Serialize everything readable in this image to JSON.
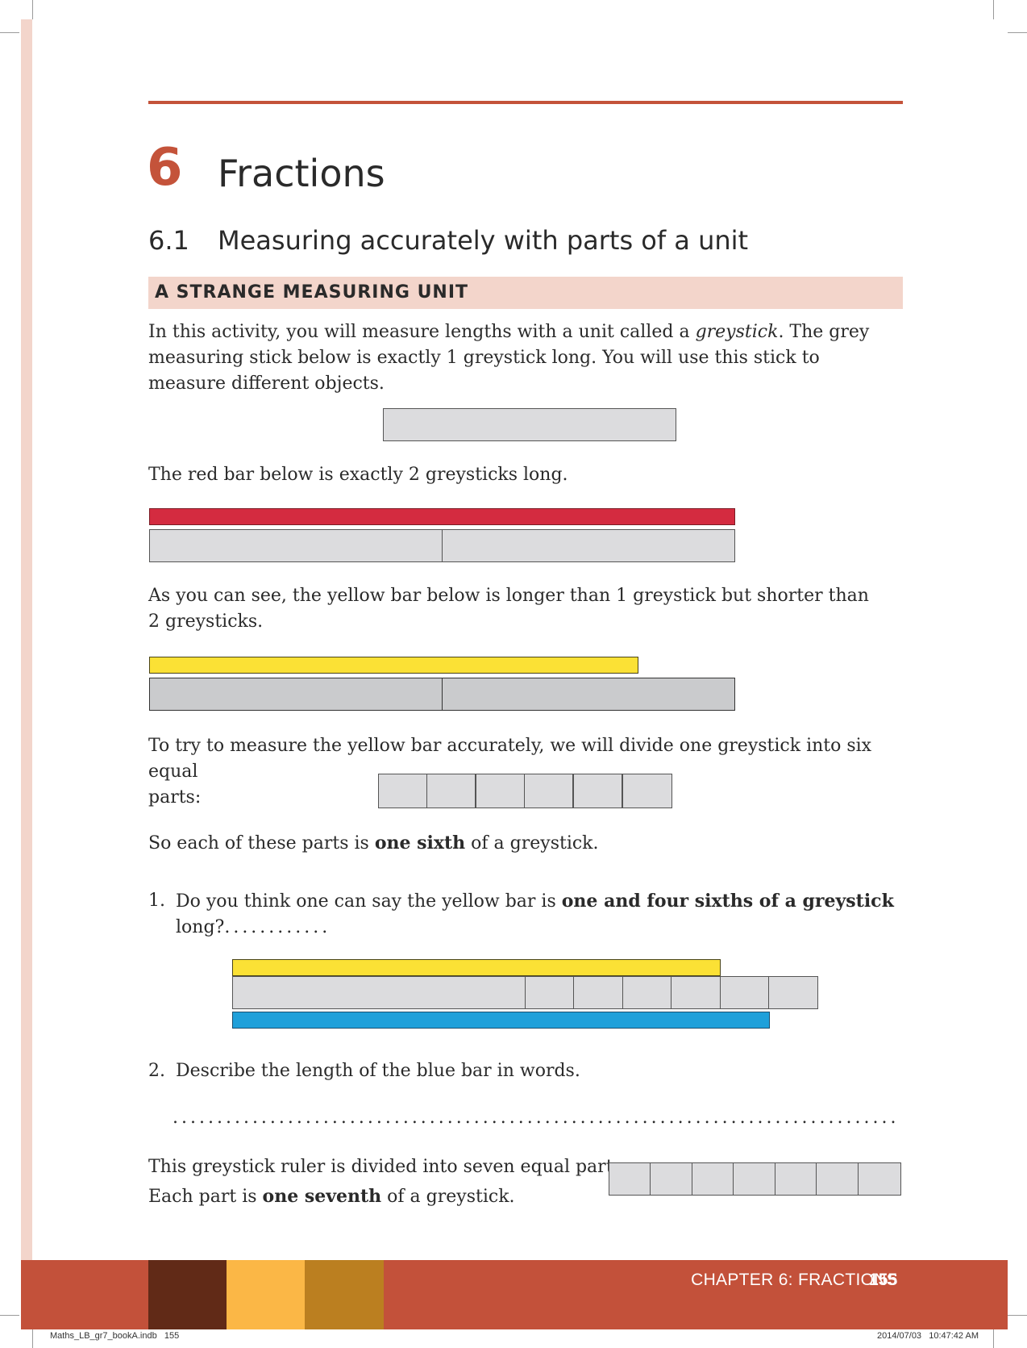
{
  "chapter": {
    "number": "6",
    "title": "Fractions"
  },
  "section": {
    "number": "6.1",
    "title": "Measuring accurately with parts of a unit"
  },
  "activity": {
    "title": "A STRANGE MEASURING UNIT"
  },
  "intro": {
    "part1": "In this activity, you will measure lengths with a unit called a ",
    "term": "greystick",
    "part2": ". The grey measuring stick below is exactly 1 greystick long. You will use this stick to measure different objects."
  },
  "red_text": "The red bar below is exactly 2 greysticks long.",
  "yellow_text": {
    "line1": "As you can see, the yellow bar below is longer than 1 greystick but shorter than",
    "line2": "2 greysticks."
  },
  "divide_text": {
    "line1": "To try to measure the yellow bar accurately, we will divide one greystick into six equal",
    "line2": "parts:"
  },
  "sixth_text": {
    "before": "So each of these parts is ",
    "bold": "one sixth",
    "after": " of a greystick."
  },
  "question1": {
    "number": "1.",
    "before": "Do you think one can say the yellow bar is ",
    "bold": "one and four sixths of a greystick",
    "line2": "long?",
    "answer_dots": "............"
  },
  "question2": {
    "number": "2.",
    "text": "Describe the length of the blue bar in words.",
    "answer_dots": "..........................................................................................."
  },
  "seventh_text": {
    "line1": "This greystick ruler is divided into seven equal parts:",
    "before": "Each part is ",
    "bold": "one seventh",
    "after": " of a greystick."
  },
  "measures": {
    "red_bar_greysticks": 2,
    "yellow_bar_greysticks": 1.667,
    "blue_bar_greysticks": 1.833,
    "parts_first_ruler": 6,
    "parts_second_ruler": 7
  },
  "footer": {
    "chapter_label": "CHAPTER 6: FRACTIONS",
    "page_number": "155",
    "colors": [
      "#612a17",
      "#fbb746",
      "#bb7f20"
    ]
  },
  "slug": {
    "file": "Maths_LB_gr7_bookA.indb   155",
    "timestamp": "2014/07/03   10:47:42 AM"
  }
}
